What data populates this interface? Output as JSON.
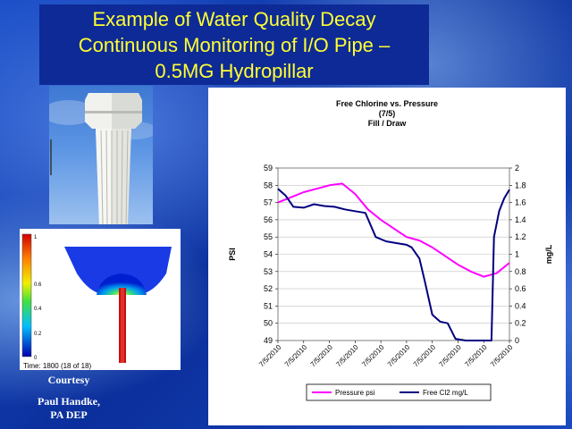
{
  "slide": {
    "title_lines": [
      "Example of Water Quality Decay",
      "Continuous Monitoring of I/O Pipe –",
      "0.5MG Hydropillar"
    ],
    "courtesy": "Courtesy",
    "credit_name": "Paul Handke,",
    "credit_org": "PA DEP"
  },
  "simulation": {
    "colorbar_ticks": [
      "1",
      "0.6",
      "0.4",
      "0.2",
      "0"
    ],
    "time_label": "Time: 1800 (18 of 18)"
  },
  "chart_data": {
    "type": "line",
    "title_lines": [
      "Free Chlorine vs. Pressure",
      "(7/5)",
      "Fill / Draw"
    ],
    "ylabel": "PSI",
    "y2label": "mg/L",
    "ylim": [
      49,
      59
    ],
    "y2lim": [
      0,
      2
    ],
    "yticks": [
      "49",
      "50",
      "51",
      "52",
      "53",
      "54",
      "55",
      "56",
      "57",
      "58",
      "59"
    ],
    "y2ticks": [
      "0",
      "0.2",
      "0.4",
      "0.6",
      "0.8",
      "1",
      "1.2",
      "1.4",
      "1.6",
      "1.8",
      "2"
    ],
    "xticks": [
      "7/5/2010",
      "7/5/2010",
      "7/5/2010",
      "7/5/2010",
      "7/5/2010",
      "7/5/2010",
      "7/5/2010",
      "7/5/2010",
      "7/5/2010",
      "7/5/2010"
    ],
    "legend_position": "bottom",
    "series": [
      {
        "name": "Pressure psi",
        "axis": "left",
        "color": "#ff00ff",
        "x": [
          0,
          0.5,
          1,
          1.5,
          2,
          2.5,
          3,
          3.5,
          4,
          4.5,
          5,
          5.5,
          6,
          6.5,
          7,
          7.5,
          8,
          8.5,
          9
        ],
        "values": [
          57.0,
          57.3,
          57.6,
          57.8,
          58.0,
          58.1,
          57.5,
          56.6,
          56.0,
          55.5,
          55.0,
          54.8,
          54.4,
          53.9,
          53.4,
          53.0,
          52.7,
          52.9,
          53.5
        ]
      },
      {
        "name": "Free Cl2 mg/L",
        "axis": "right",
        "color": "#000080",
        "x": [
          0,
          0.3,
          0.6,
          1,
          1.4,
          1.8,
          2.2,
          2.6,
          3,
          3.4,
          3.8,
          4.2,
          4.6,
          5,
          5.2,
          5.5,
          5.7,
          6,
          6.3,
          6.6,
          6.9,
          7.3,
          7.7,
          8,
          8.3,
          8.4,
          8.6,
          8.8,
          9
        ],
        "values": [
          1.76,
          1.68,
          1.55,
          1.54,
          1.58,
          1.56,
          1.55,
          1.52,
          1.5,
          1.48,
          1.2,
          1.15,
          1.13,
          1.11,
          1.08,
          0.95,
          0.7,
          0.3,
          0.22,
          0.2,
          0.02,
          0.0,
          0.0,
          0.0,
          0.0,
          1.2,
          1.5,
          1.65,
          1.75
        ]
      }
    ]
  }
}
